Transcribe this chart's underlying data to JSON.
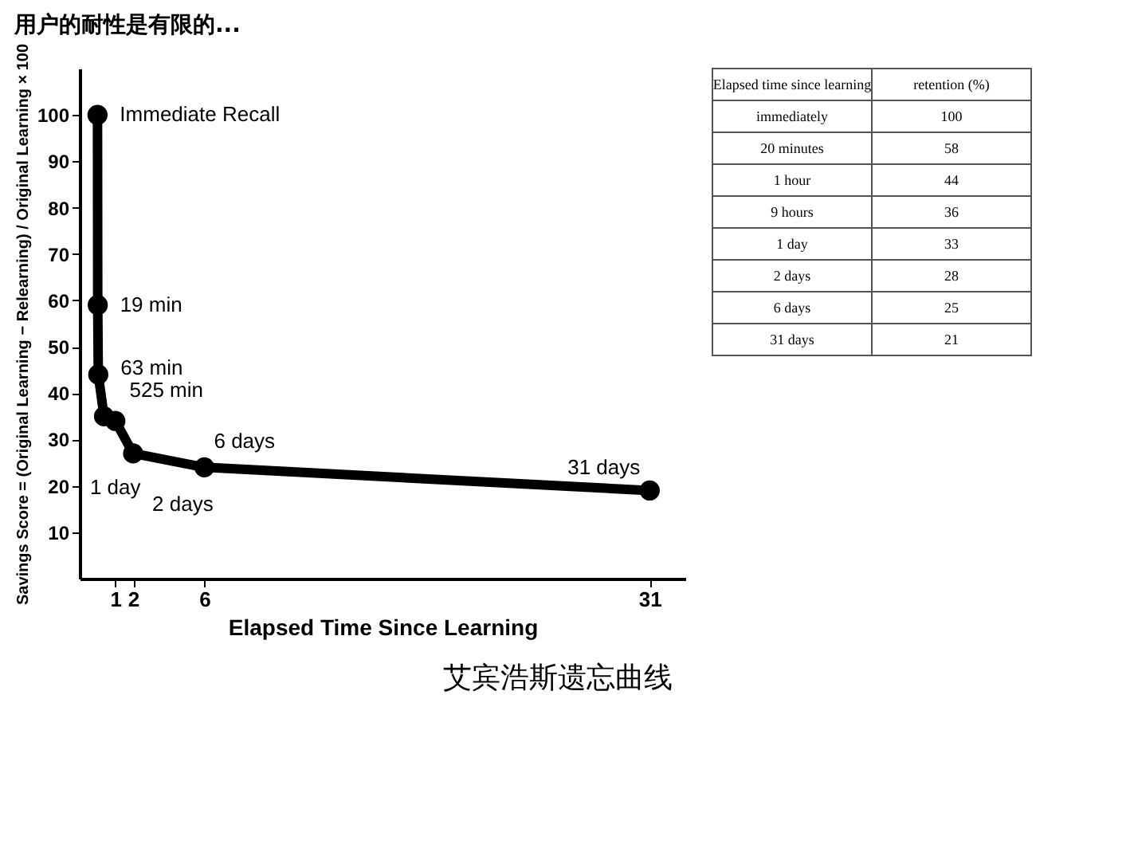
{
  "chart_data": [
    {
      "type": "line",
      "title": "用户的耐性是有限的...",
      "xlabel": "Elapsed Time Since Learning",
      "ylabel": "Savings Score = (Original Learning − Relearning) / Original Learning × 100",
      "x": [
        0,
        0.0132,
        0.0438,
        0.365,
        1,
        2,
        6,
        31
      ],
      "series": [
        {
          "color": "#000000",
          "values": [
            100,
            59,
            44,
            35,
            34,
            27,
            24,
            19
          ]
        }
      ],
      "xlim": [
        -1,
        33
      ],
      "xticks": [
        1,
        2,
        6,
        31
      ],
      "ylim": [
        0,
        110
      ],
      "yticks": [
        10,
        20,
        30,
        40,
        50,
        60,
        70,
        80,
        90,
        100
      ],
      "grid": false,
      "legend": false,
      "marker": "circle",
      "line_style": "solid",
      "annotations": [
        {
          "text": "Immediate Recall",
          "x": 0,
          "y": 100
        },
        {
          "text": "19 min",
          "x": 0.0132,
          "y": 59
        },
        {
          "text": "63 min",
          "x": 0.0438,
          "y": 44
        },
        {
          "text": "525 min",
          "x": 0.365,
          "y": 35
        },
        {
          "text": "1 day",
          "x": 1,
          "y": 34
        },
        {
          "text": "2 days",
          "x": 2,
          "y": 27
        },
        {
          "text": "6 days",
          "x": 6,
          "y": 24
        },
        {
          "text": "31 days",
          "x": 31,
          "y": 19
        },
        "艾宾浩斯遗忘曲线"
      ]
    },
    {
      "type": "other",
      "xlabel": "Elapsed time since learning",
      "ylabel": "retention (%)",
      "categories": [
        "immediately",
        "20 minutes",
        "1 hour",
        "9 hours",
        "1 day",
        "2 days",
        "6 days",
        "31 days"
      ],
      "values": [
        100,
        58,
        44,
        36,
        33,
        28,
        25,
        21
      ],
      "data_labels": true
    }
  ]
}
